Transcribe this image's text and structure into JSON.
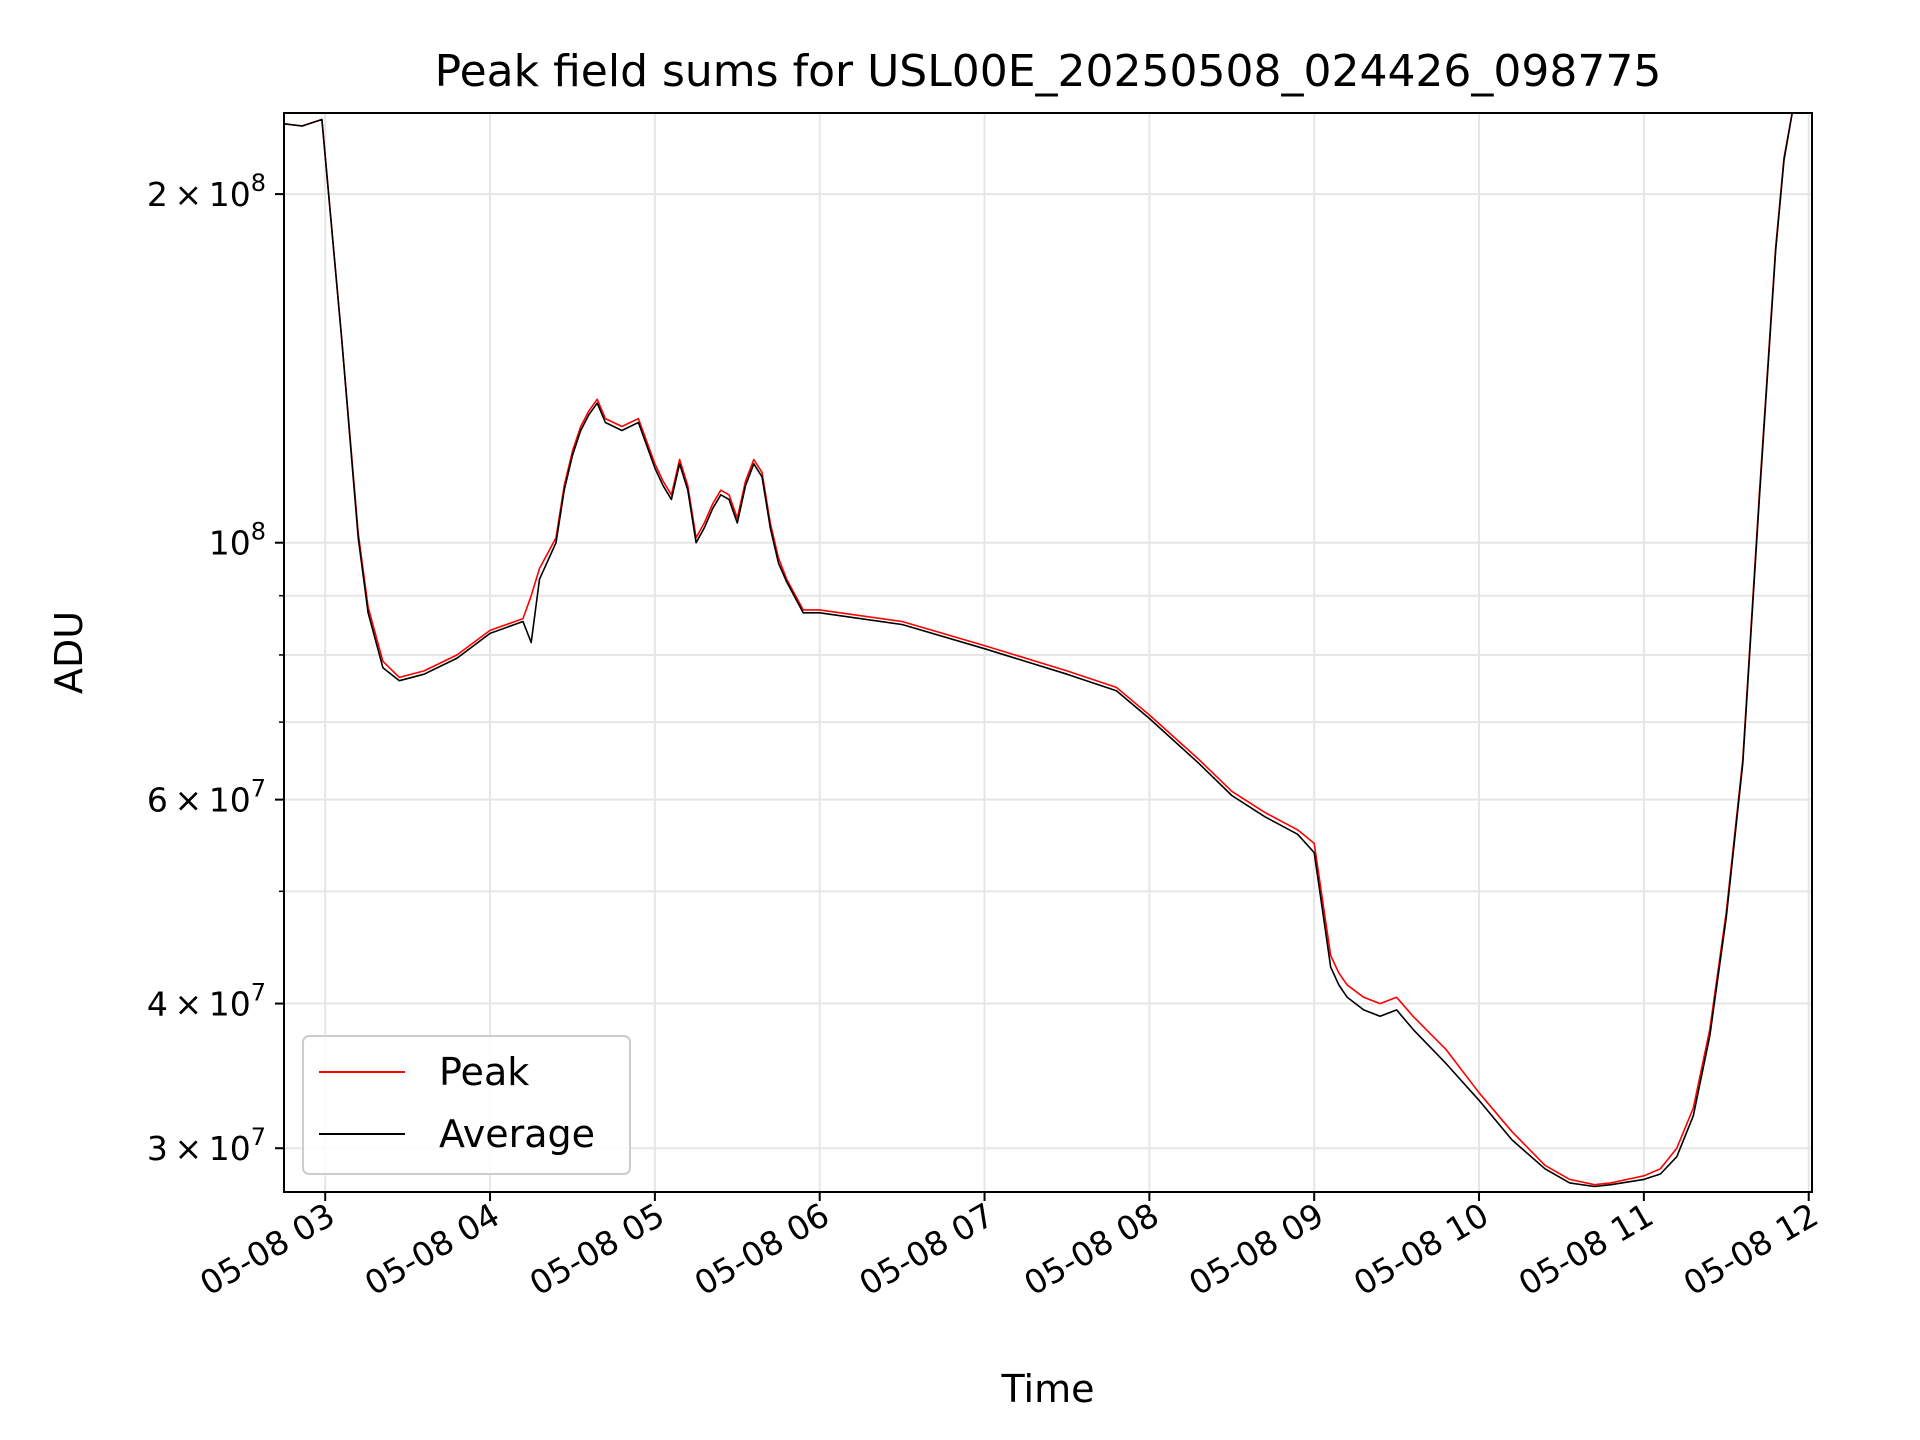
{
  "chart_data": {
    "type": "line",
    "title": "Peak field sums for USL00E_20250508_024426_098775",
    "xlabel": "Time",
    "ylabel": "ADU",
    "x_ticks": [
      "05-08 03",
      "05-08 04",
      "05-08 05",
      "05-08 06",
      "05-08 07",
      "05-08 08",
      "05-08 09",
      "05-08 10",
      "05-08 11",
      "05-08 12"
    ],
    "x_tick_hours": [
      3,
      4,
      5,
      6,
      7,
      8,
      9,
      10,
      11,
      12
    ],
    "xlim_hours": [
      2.75,
      12.02
    ],
    "y_scale": "log",
    "ylim": [
      27500000,
      235000000
    ],
    "y_major_ticks": [
      {
        "value": 30000000,
        "mantissa": "3",
        "exponent": "7"
      },
      {
        "value": 40000000,
        "mantissa": "4",
        "exponent": "7"
      },
      {
        "value": 60000000,
        "mantissa": "6",
        "exponent": "7"
      },
      {
        "value": 100000000,
        "mantissa": "",
        "exponent": "8"
      },
      {
        "value": 200000000,
        "mantissa": "2",
        "exponent": "8"
      }
    ],
    "y_minor_ticks": [
      50000000,
      70000000,
      80000000,
      90000000
    ],
    "grid": true,
    "legend_position": "lower-left",
    "series": [
      {
        "name": "Peak",
        "color": "#ff0000",
        "x": [
          2.75,
          2.86,
          2.98,
          3.05,
          3.1,
          3.2,
          3.26,
          3.35,
          3.45,
          3.6,
          3.8,
          4.0,
          4.2,
          4.25,
          4.3,
          4.4,
          4.45,
          4.5,
          4.55,
          4.6,
          4.65,
          4.7,
          4.8,
          4.9,
          5.0,
          5.05,
          5.1,
          5.15,
          5.2,
          5.25,
          5.3,
          5.35,
          5.4,
          5.45,
          5.5,
          5.55,
          5.6,
          5.65,
          5.7,
          5.75,
          5.8,
          5.9,
          6.0,
          6.5,
          7.0,
          7.5,
          7.8,
          8.0,
          8.3,
          8.5,
          8.7,
          8.9,
          9.0,
          9.1,
          9.15,
          9.2,
          9.3,
          9.4,
          9.5,
          9.6,
          9.8,
          10.0,
          10.2,
          10.4,
          10.55,
          10.7,
          10.8,
          11.0,
          11.1,
          11.2,
          11.3,
          11.4,
          11.5,
          11.6,
          11.7,
          11.8,
          11.85,
          11.9,
          12.02
        ],
        "y": [
          230000000,
          229000000,
          232000000,
          180000000,
          150000000,
          102000000,
          88000000,
          79000000,
          76500000,
          77500000,
          80000000,
          84000000,
          86000000,
          90000000,
          95000000,
          101000000,
          112000000,
          120000000,
          126000000,
          130000000,
          133000000,
          128000000,
          126000000,
          128000000,
          117000000,
          113000000,
          110000000,
          118000000,
          112000000,
          101000000,
          104000000,
          108000000,
          111000000,
          110000000,
          105000000,
          113000000,
          118000000,
          115000000,
          104000000,
          97000000,
          93000000,
          87500000,
          87500000,
          85500000,
          81500000,
          77500000,
          75000000,
          71000000,
          65000000,
          61000000,
          58500000,
          56500000,
          55000000,
          44000000,
          42500000,
          41500000,
          40500000,
          40000000,
          40500000,
          39000000,
          36500000,
          33500000,
          31000000,
          29000000,
          28200000,
          27900000,
          28000000,
          28400000,
          28800000,
          30000000,
          32500000,
          38000000,
          48000000,
          65000000,
          110000000,
          180000000,
          215000000,
          235000000,
          235000000
        ]
      },
      {
        "name": "Average",
        "color": "#000000",
        "x": [
          2.75,
          2.86,
          2.98,
          3.05,
          3.1,
          3.2,
          3.26,
          3.35,
          3.45,
          3.6,
          3.8,
          4.0,
          4.2,
          4.25,
          4.3,
          4.4,
          4.45,
          4.5,
          4.55,
          4.6,
          4.65,
          4.7,
          4.8,
          4.9,
          5.0,
          5.05,
          5.1,
          5.15,
          5.2,
          5.25,
          5.3,
          5.35,
          5.4,
          5.45,
          5.5,
          5.55,
          5.6,
          5.65,
          5.7,
          5.75,
          5.8,
          5.9,
          6.0,
          6.5,
          7.0,
          7.5,
          7.8,
          8.0,
          8.3,
          8.5,
          8.7,
          8.9,
          9.0,
          9.1,
          9.15,
          9.2,
          9.3,
          9.4,
          9.5,
          9.6,
          9.8,
          10.0,
          10.2,
          10.4,
          10.55,
          10.7,
          10.8,
          11.0,
          11.1,
          11.2,
          11.3,
          11.4,
          11.5,
          11.6,
          11.7,
          11.8,
          11.85,
          11.9,
          12.02
        ],
        "y": [
          230000000,
          229000000,
          232000000,
          180000000,
          150000000,
          101000000,
          87000000,
          78000000,
          76000000,
          77000000,
          79500000,
          83500000,
          85500000,
          82000000,
          93000000,
          100000000,
          111000000,
          119000000,
          125000000,
          129000000,
          132000000,
          127000000,
          125000000,
          127000000,
          116000000,
          112000000,
          109000000,
          117000000,
          111000000,
          100000000,
          103000000,
          107000000,
          110000000,
          109000000,
          104000000,
          112000000,
          117000000,
          114000000,
          103000000,
          96000000,
          92500000,
          87000000,
          87000000,
          85000000,
          81000000,
          77000000,
          74500000,
          70500000,
          64500000,
          60500000,
          58000000,
          56000000,
          54000000,
          43000000,
          41500000,
          40500000,
          39500000,
          39000000,
          39500000,
          38000000,
          35500000,
          33000000,
          30500000,
          28800000,
          28000000,
          27800000,
          27900000,
          28200000,
          28500000,
          29500000,
          32000000,
          37500000,
          47500000,
          64500000,
          109000000,
          179000000,
          214000000,
          235000000,
          235000000
        ]
      }
    ]
  }
}
